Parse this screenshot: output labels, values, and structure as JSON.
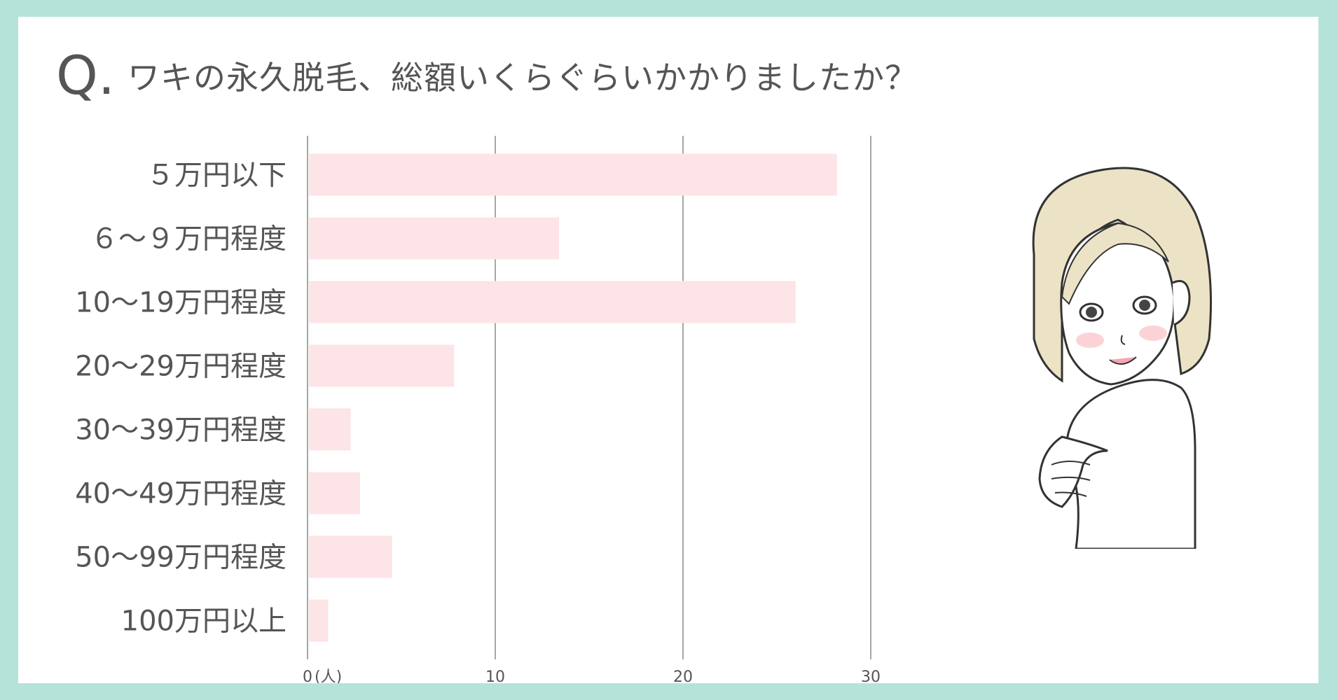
{
  "question_mark": "Q.",
  "title": "ワキの永久脱毛、総額いくらぐらいかかりましたか？",
  "colors": {
    "background": "#b5e3da",
    "card": "#ffffff",
    "bar": "#fde4e6",
    "gridline": "#888888",
    "text": "#555555"
  },
  "chart_data": {
    "type": "bar",
    "orientation": "horizontal",
    "categories": [
      "５万円以下",
      "６～９万円程度",
      "10～19万円程度",
      "20～29万円程度",
      "30～39万円程度",
      "40～49万円程度",
      "50～99万円程度",
      "100万円以上"
    ],
    "values": [
      28.2,
      13.4,
      26,
      7.8,
      2.3,
      2.8,
      4.5,
      1.1
    ],
    "xlim": [
      0,
      30
    ],
    "xticks": [
      "0",
      "10",
      "20",
      "30"
    ],
    "unit_label": "(人)",
    "grid": true,
    "legend": "none"
  },
  "illustration": {
    "icon": "woman-illustration-icon"
  }
}
